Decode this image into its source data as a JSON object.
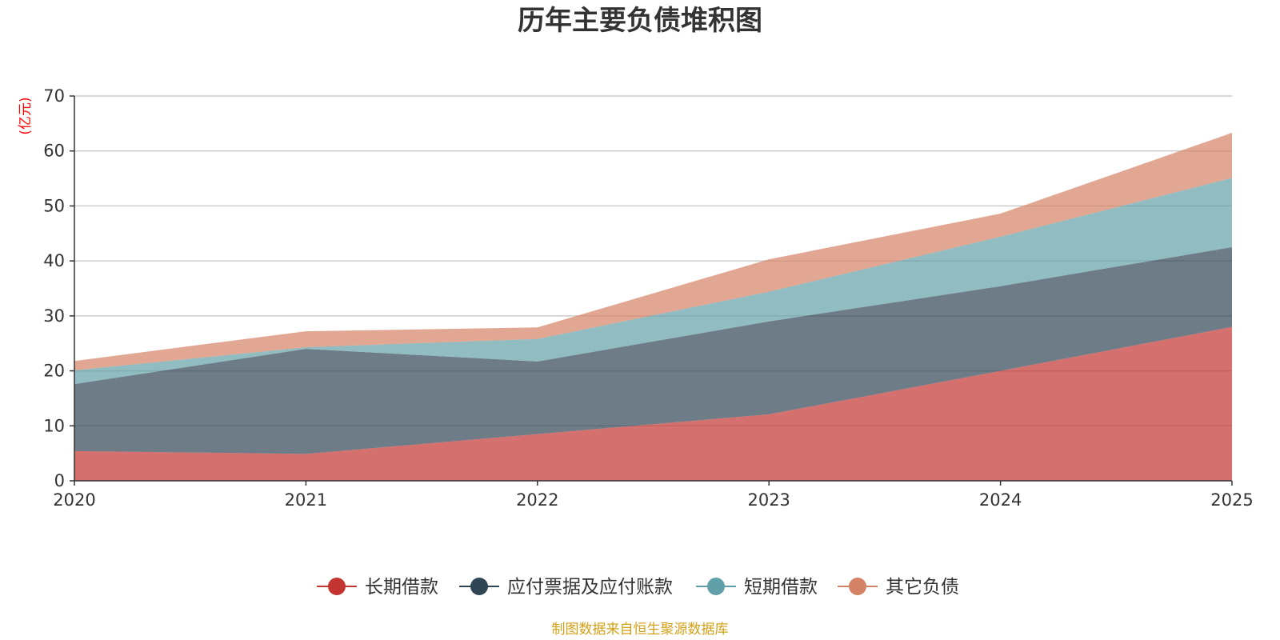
{
  "chart_data": {
    "type": "area",
    "stacked": true,
    "title": "历年主要负债堆积图",
    "ylabel": "(亿元)",
    "xlabel": "",
    "categories": [
      "2020",
      "2021",
      "2022",
      "2023",
      "2024",
      "2025"
    ],
    "ylim": [
      0,
      70
    ],
    "yticks": [
      0,
      10,
      20,
      30,
      40,
      50,
      60,
      70
    ],
    "grid": true,
    "legend_position": "bottom-center",
    "series": [
      {
        "name": "长期借款",
        "color": "#c23531",
        "values": [
          5.4,
          4.9,
          8.5,
          12.1,
          20.0,
          28.0
        ]
      },
      {
        "name": "应付票据及应付账款",
        "color": "#2f4554",
        "values": [
          12.2,
          19.1,
          13.2,
          16.9,
          15.4,
          14.5
        ]
      },
      {
        "name": "短期借款",
        "color": "#61a0a8",
        "values": [
          2.5,
          0.3,
          4.1,
          5.4,
          9.0,
          12.6
        ]
      },
      {
        "name": "其它负债",
        "color": "#d48265",
        "values": [
          1.7,
          2.9,
          2.1,
          5.9,
          4.2,
          8.2
        ]
      }
    ]
  },
  "colors": {
    "unit_label": "#ff0000",
    "source": "#d4a017",
    "grid": "#cccccc",
    "axis": "#333333"
  },
  "footer": {
    "source": "制图数据来自恒生聚源数据库"
  }
}
